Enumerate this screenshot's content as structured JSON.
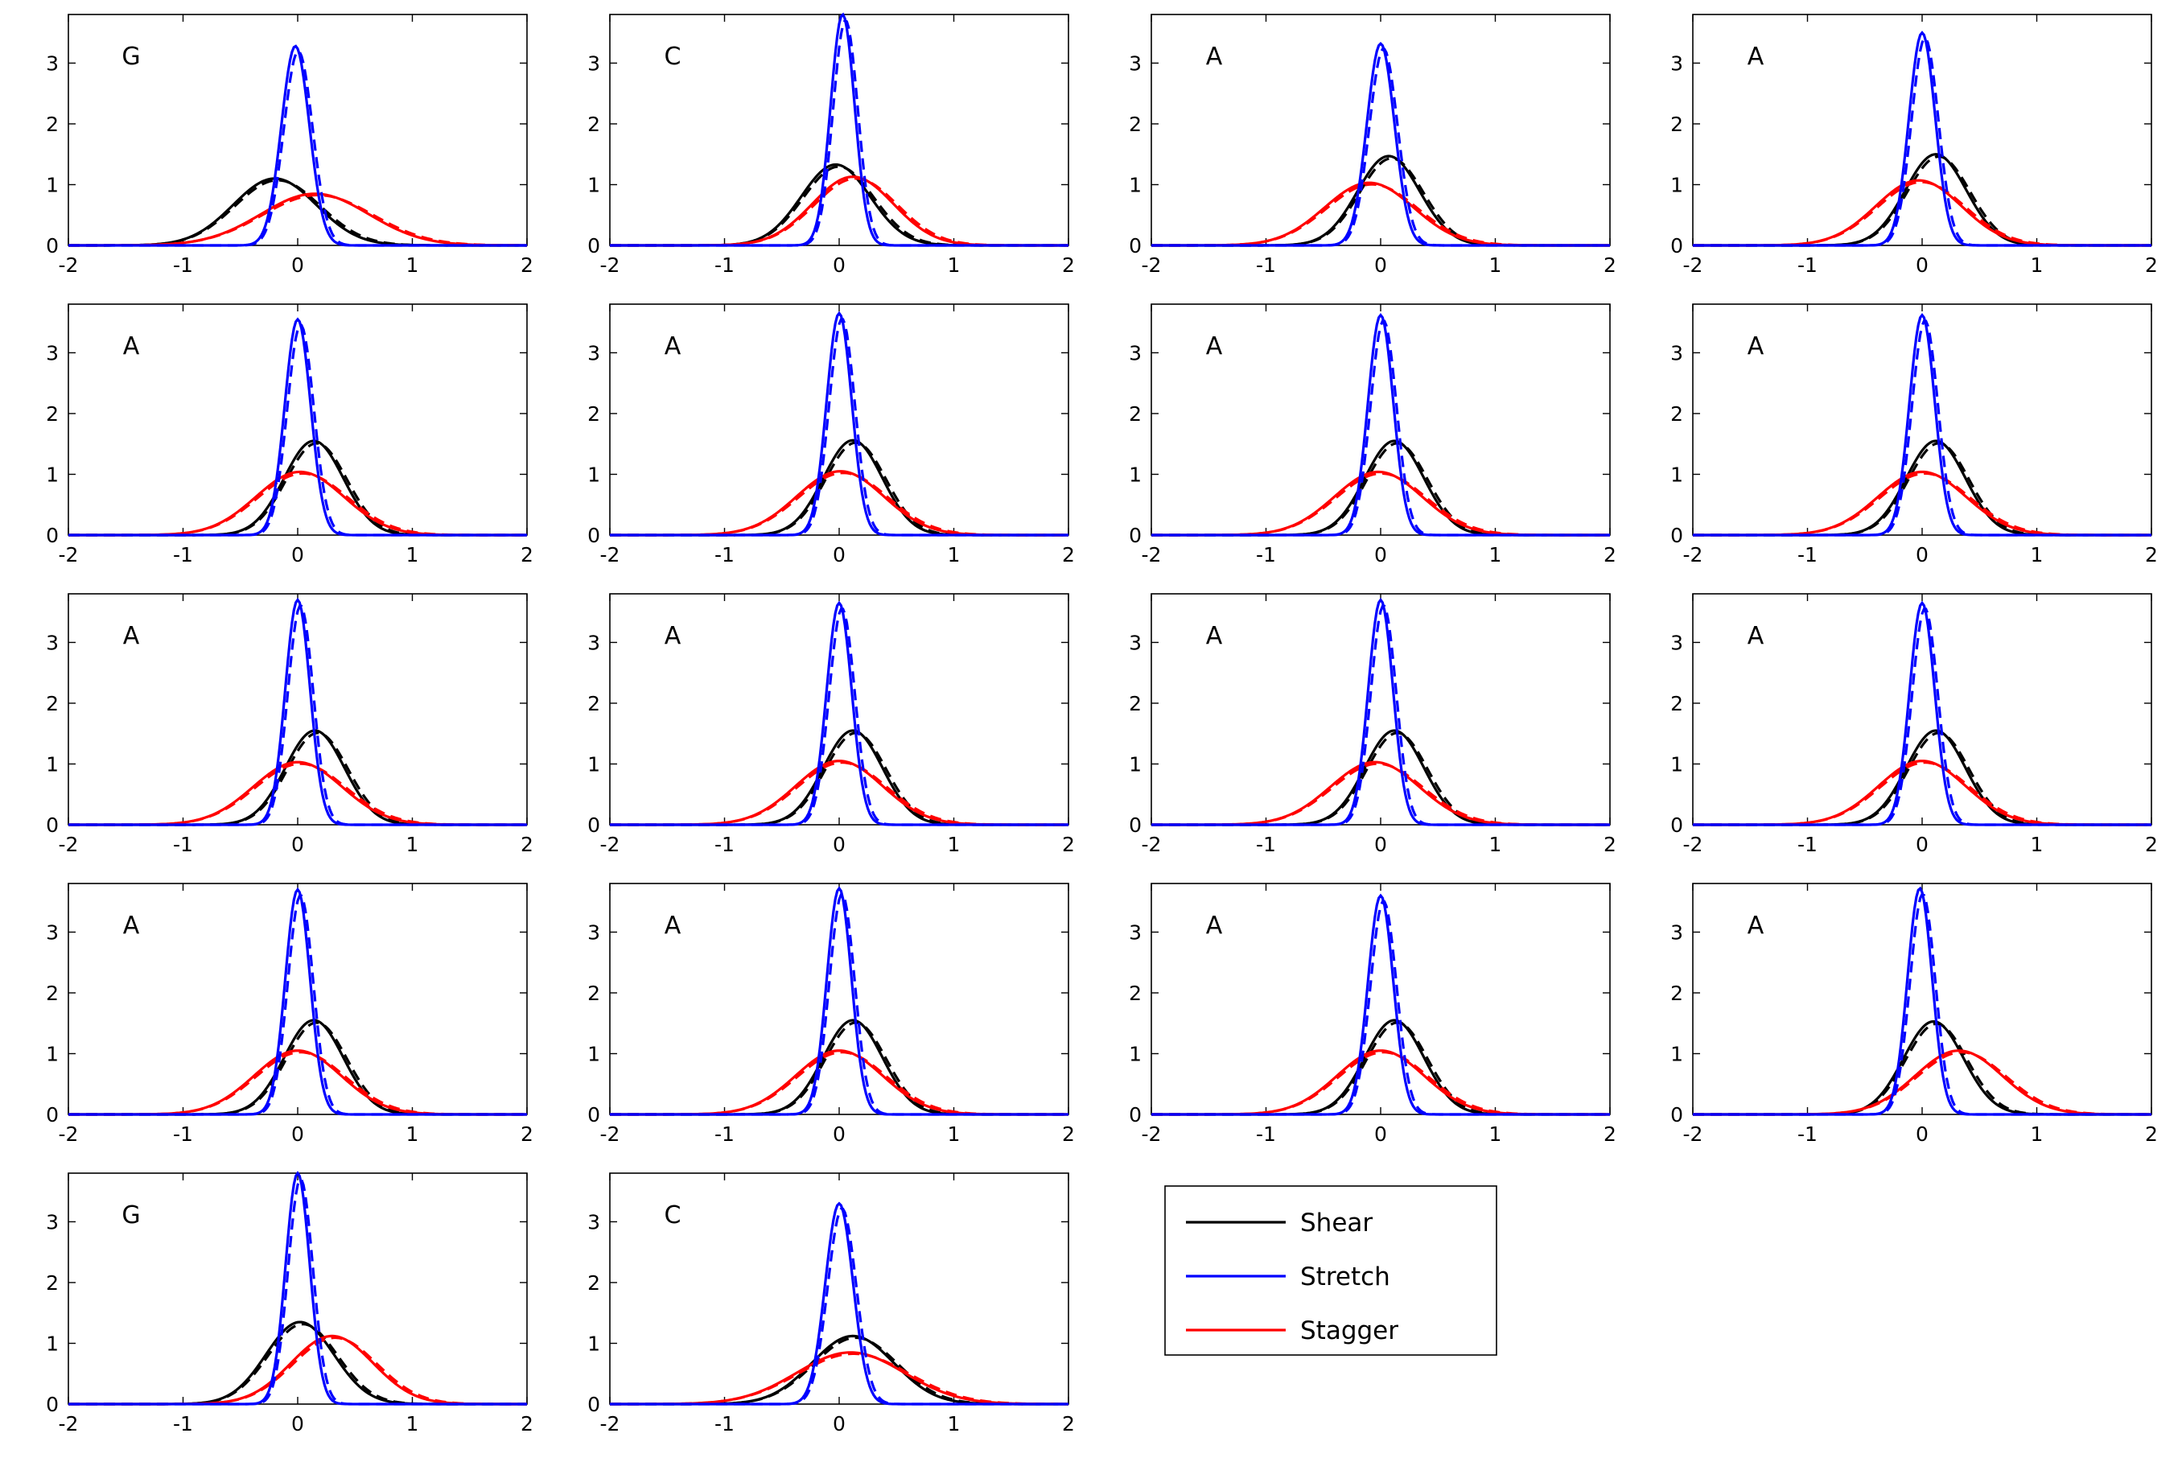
{
  "chart_data": {
    "type": "line",
    "layout": "grid",
    "grid": false,
    "legend_position": "bottom-center",
    "xlim": [
      -2,
      2
    ],
    "ylim": [
      0,
      3.8
    ],
    "xticks": [
      -2,
      -1,
      0,
      1,
      2
    ],
    "yticks": [
      0,
      1,
      2,
      3
    ],
    "legend": [
      {
        "name": "Shear",
        "color": "#000000"
      },
      {
        "name": "Stretch",
        "color": "#0000ff"
      },
      {
        "name": "Stagger",
        "color": "#ff0000"
      }
    ],
    "series_colors": {
      "shear": "#000000",
      "stretch": "#0000ff",
      "stagger": "#ff0000"
    },
    "panels": [
      {
        "label": "G",
        "shear": {
          "mean": -0.2,
          "peak": 1.1
        },
        "stretch": {
          "mean": -0.02,
          "peak": 3.28
        },
        "stagger": {
          "mean": 0.15,
          "peak": 0.85
        }
      },
      {
        "label": "C",
        "shear": {
          "mean": -0.03,
          "peak": 1.33
        },
        "stretch": {
          "mean": 0.03,
          "peak": 3.8
        },
        "stagger": {
          "mean": 0.12,
          "peak": 1.13
        }
      },
      {
        "label": "A",
        "shear": {
          "mean": 0.07,
          "peak": 1.47
        },
        "stretch": {
          "mean": 0.0,
          "peak": 3.32
        },
        "stagger": {
          "mean": -0.1,
          "peak": 1.03
        }
      },
      {
        "label": "A",
        "shear": {
          "mean": 0.12,
          "peak": 1.5
        },
        "stretch": {
          "mean": 0.0,
          "peak": 3.5
        },
        "stagger": {
          "mean": -0.03,
          "peak": 1.07
        }
      },
      {
        "label": "A",
        "shear": {
          "mean": 0.14,
          "peak": 1.55
        },
        "stretch": {
          "mean": 0.0,
          "peak": 3.55
        },
        "stagger": {
          "mean": 0.02,
          "peak": 1.04
        }
      },
      {
        "label": "A",
        "shear": {
          "mean": 0.12,
          "peak": 1.56
        },
        "stretch": {
          "mean": 0.0,
          "peak": 3.65
        },
        "stagger": {
          "mean": 0.01,
          "peak": 1.05
        }
      },
      {
        "label": "A",
        "shear": {
          "mean": 0.12,
          "peak": 1.55
        },
        "stretch": {
          "mean": 0.0,
          "peak": 3.62
        },
        "stagger": {
          "mean": -0.02,
          "peak": 1.04
        }
      },
      {
        "label": "A",
        "shear": {
          "mean": 0.12,
          "peak": 1.55
        },
        "stretch": {
          "mean": 0.0,
          "peak": 3.62
        },
        "stagger": {
          "mean": 0.0,
          "peak": 1.04
        }
      },
      {
        "label": "A",
        "shear": {
          "mean": 0.15,
          "peak": 1.55
        },
        "stretch": {
          "mean": 0.0,
          "peak": 3.7
        },
        "stagger": {
          "mean": 0.0,
          "peak": 1.03
        }
      },
      {
        "label": "A",
        "shear": {
          "mean": 0.12,
          "peak": 1.55
        },
        "stretch": {
          "mean": 0.0,
          "peak": 3.65
        },
        "stagger": {
          "mean": 0.0,
          "peak": 1.05
        }
      },
      {
        "label": "A",
        "shear": {
          "mean": 0.12,
          "peak": 1.55
        },
        "stretch": {
          "mean": 0.0,
          "peak": 3.7
        },
        "stagger": {
          "mean": -0.05,
          "peak": 1.03
        }
      },
      {
        "label": "A",
        "shear": {
          "mean": 0.12,
          "peak": 1.55
        },
        "stretch": {
          "mean": 0.0,
          "peak": 3.65
        },
        "stagger": {
          "mean": 0.0,
          "peak": 1.05
        }
      },
      {
        "label": "A",
        "shear": {
          "mean": 0.14,
          "peak": 1.55
        },
        "stretch": {
          "mean": 0.0,
          "peak": 3.7
        },
        "stagger": {
          "mean": 0.0,
          "peak": 1.05
        }
      },
      {
        "label": "A",
        "shear": {
          "mean": 0.12,
          "peak": 1.55
        },
        "stretch": {
          "mean": 0.0,
          "peak": 3.72
        },
        "stagger": {
          "mean": 0.0,
          "peak": 1.05
        }
      },
      {
        "label": "A",
        "shear": {
          "mean": 0.12,
          "peak": 1.55
        },
        "stretch": {
          "mean": 0.0,
          "peak": 3.6
        },
        "stagger": {
          "mean": 0.0,
          "peak": 1.05
        }
      },
      {
        "label": "A",
        "shear": {
          "mean": 0.1,
          "peak": 1.53
        },
        "stretch": {
          "mean": -0.02,
          "peak": 3.72
        },
        "stagger": {
          "mean": 0.32,
          "peak": 1.05
        }
      },
      {
        "label": "G",
        "shear": {
          "mean": 0.02,
          "peak": 1.35
        },
        "stretch": {
          "mean": 0.0,
          "peak": 3.8
        },
        "stagger": {
          "mean": 0.3,
          "peak": 1.12
        }
      },
      {
        "label": "C",
        "shear": {
          "mean": 0.12,
          "peak": 1.12
        },
        "stretch": {
          "mean": 0.0,
          "peak": 3.3
        },
        "stagger": {
          "mean": 0.1,
          "peak": 0.85
        }
      }
    ]
  }
}
